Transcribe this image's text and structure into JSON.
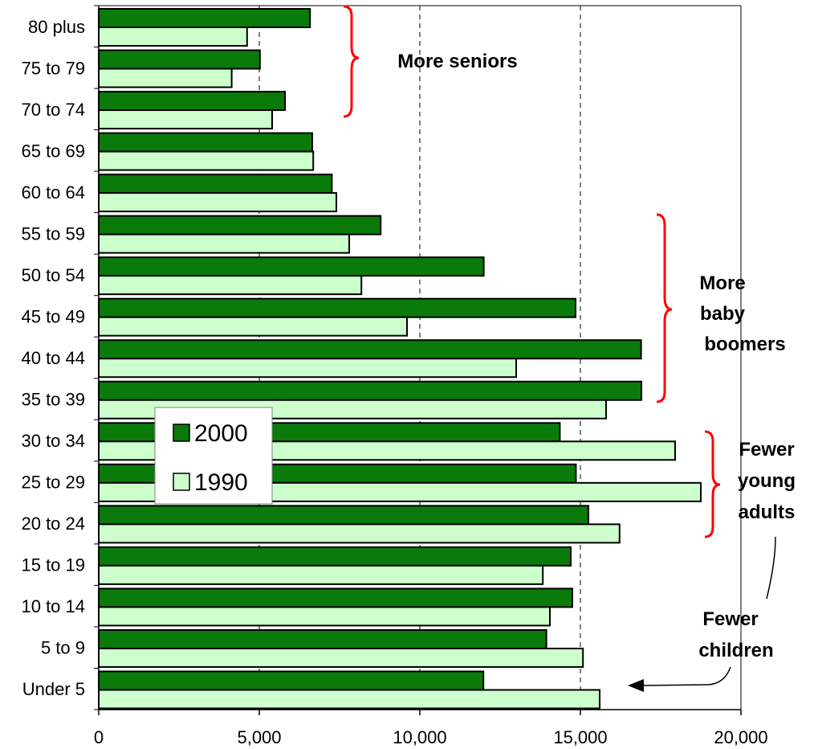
{
  "chart_data": {
    "type": "bar",
    "orientation": "horizontal",
    "categories": [
      "80 plus",
      "75 to 79",
      "70 to 74",
      "65 to 69",
      "60 to 64",
      "55 to 59",
      "50 to 54",
      "45 to 49",
      "40 to 44",
      "35 to 39",
      "30 to 34",
      "25 to 29",
      "20 to 24",
      "15 to 19",
      "10 to 14",
      "5 to 9",
      "Under 5"
    ],
    "series": [
      {
        "name": "2000",
        "color": "#0a7a0a",
        "values": [
          6580,
          5020,
          5800,
          6650,
          7260,
          8780,
          11990,
          14850,
          16890,
          16900,
          14360,
          14860,
          15250,
          14700,
          14750,
          13940,
          11980
        ]
      },
      {
        "name": "1990",
        "color": "#ccffcc",
        "values": [
          4620,
          4140,
          5400,
          6680,
          7400,
          7800,
          8180,
          9600,
          13000,
          15800,
          17950,
          18750,
          16220,
          13830,
          14050,
          15080,
          15600
        ]
      }
    ],
    "xlim": [
      0,
      20000
    ],
    "xticks": [
      0,
      5000,
      10000,
      15000,
      20000
    ],
    "xtick_labels": [
      "0",
      "5,000",
      "10,000",
      "15,000",
      "20,000"
    ],
    "gridlines": "dashed vertical",
    "legend": {
      "position": "center-left",
      "entries": [
        "2000",
        "1990"
      ]
    },
    "annotations": [
      {
        "id": "seniors",
        "lines": [
          "More seniors"
        ]
      },
      {
        "id": "boomers",
        "lines": [
          "More",
          "baby",
          "boomers"
        ]
      },
      {
        "id": "young",
        "lines": [
          "Fewer",
          "young",
          "adults"
        ]
      },
      {
        "id": "children",
        "lines": [
          "Fewer",
          "children"
        ]
      }
    ]
  }
}
